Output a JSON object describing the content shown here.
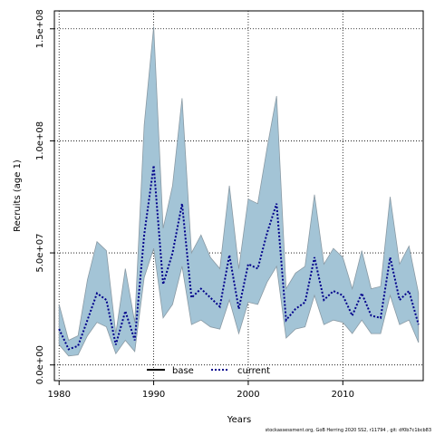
{
  "chart_data": {
    "type": "area",
    "xlabel": "Years",
    "ylabel": "Recruits (age 1)",
    "xlim": [
      1979.5,
      2018.5
    ],
    "ylim": [
      -7000000,
      158000000
    ],
    "x_ticks": [
      1980,
      1990,
      2000,
      2010
    ],
    "y_ticks": [
      {
        "value": 0,
        "label": "0.0e+00"
      },
      {
        "value": 50000000,
        "label": "5.0e+07"
      },
      {
        "value": 100000000,
        "label": "1.0e+08"
      },
      {
        "value": 150000000,
        "label": "1.5e+08"
      }
    ],
    "grid": true,
    "grid_style": "dotted",
    "legend": {
      "placement": "bottom-center",
      "entries": [
        {
          "name": "base",
          "style": "solid",
          "color": "#000000"
        },
        {
          "name": "current",
          "style": "dotted",
          "color": "#00008b"
        }
      ]
    },
    "band_color": "#a3c4d6",
    "band_edge_color": "#8a9aa4",
    "x": [
      1980,
      1981,
      1982,
      1983,
      1984,
      1985,
      1986,
      1987,
      1988,
      1989,
      1990,
      1991,
      1992,
      1993,
      1994,
      1995,
      1996,
      1997,
      1998,
      1999,
      2000,
      2001,
      2002,
      2003,
      2004,
      2005,
      2006,
      2007,
      2008,
      2009,
      2010,
      2011,
      2012,
      2013,
      2014,
      2015,
      2016,
      2017,
      2018
    ],
    "series": [
      {
        "name": "current",
        "values": [
          16000000,
          7000000,
          8500000,
          20000000,
          32000000,
          29000000,
          9000000,
          24000000,
          11000000,
          58000000,
          89000000,
          36000000,
          50000000,
          72000000,
          30000000,
          34000000,
          30000000,
          26000000,
          49000000,
          25000000,
          45000000,
          43000000,
          59000000,
          72000000,
          20000000,
          25000000,
          28000000,
          48000000,
          29000000,
          33000000,
          31000000,
          22000000,
          32000000,
          22000000,
          21000000,
          48000000,
          29000000,
          33000000,
          18000000
        ],
        "lower": [
          9000000,
          4000000,
          4500000,
          13000000,
          19000000,
          17000000,
          5000000,
          11000000,
          6000000,
          39000000,
          52000000,
          21000000,
          27000000,
          44000000,
          18000000,
          20000000,
          17000000,
          16000000,
          29000000,
          14000000,
          28000000,
          27000000,
          37000000,
          44000000,
          12000000,
          16000000,
          17000000,
          31000000,
          18000000,
          20000000,
          19000000,
          14000000,
          20000000,
          14000000,
          14000000,
          31000000,
          18000000,
          20000000,
          10000000
        ],
        "upper": [
          27000000,
          11000000,
          13000000,
          38000000,
          55000000,
          51000000,
          14000000,
          43000000,
          19000000,
          107000000,
          151000000,
          61000000,
          80000000,
          119000000,
          50000000,
          58000000,
          48000000,
          43000000,
          80000000,
          43000000,
          74000000,
          72000000,
          97000000,
          120000000,
          34000000,
          41000000,
          44000000,
          76000000,
          45000000,
          52000000,
          48000000,
          34000000,
          51000000,
          34000000,
          35000000,
          75000000,
          45000000,
          53000000,
          32000000
        ]
      }
    ]
  },
  "footnote": "stockassessment.org, GoB Herring 2020 SS2, r11794 , git: df0b7c1bcb83"
}
